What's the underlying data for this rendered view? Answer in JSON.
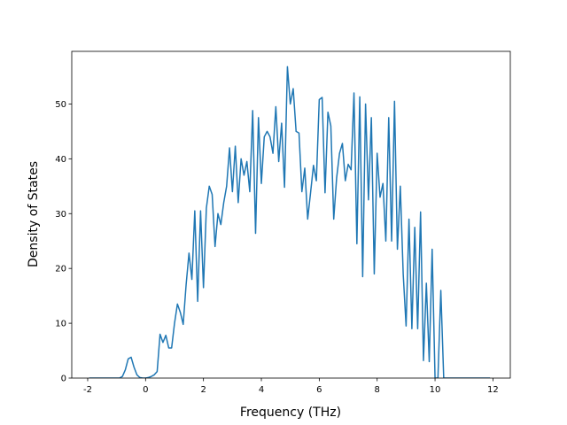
{
  "chart_data": {
    "type": "line",
    "xlabel": "Frequency (THz)",
    "ylabel": "Density of States",
    "x": [
      -1.95,
      -1.0,
      -0.9,
      -0.8,
      -0.7,
      -0.6,
      -0.5,
      -0.4,
      -0.3,
      -0.2,
      -0.1,
      0,
      0.1,
      0.2,
      0.3,
      0.4,
      0.5,
      0.6,
      0.7,
      0.8,
      0.9,
      1.0,
      1.1,
      1.2,
      1.3,
      1.4,
      1.5,
      1.6,
      1.7,
      1.8,
      1.9,
      2.0,
      2.1,
      2.2,
      2.3,
      2.4,
      2.5,
      2.6,
      2.7,
      2.8,
      2.9,
      3.0,
      3.1,
      3.2,
      3.3,
      3.4,
      3.5,
      3.6,
      3.7,
      3.8,
      3.9,
      4.0,
      4.1,
      4.2,
      4.3,
      4.4,
      4.5,
      4.6,
      4.7,
      4.8,
      4.9,
      5.0,
      5.1,
      5.2,
      5.3,
      5.4,
      5.5,
      5.6,
      5.7,
      5.8,
      5.9,
      6.0,
      6.1,
      6.2,
      6.3,
      6.4,
      6.5,
      6.6,
      6.7,
      6.8,
      6.9,
      7.0,
      7.1,
      7.2,
      7.3,
      7.4,
      7.5,
      7.6,
      7.7,
      7.8,
      7.9,
      8.0,
      8.1,
      8.2,
      8.3,
      8.4,
      8.5,
      8.6,
      8.7,
      8.8,
      8.9,
      9.0,
      9.1,
      9.2,
      9.3,
      9.4,
      9.5,
      9.6,
      9.7,
      9.8,
      9.9,
      10.0,
      10.1,
      10.2,
      10.3,
      10.4,
      11.9
    ],
    "series": [
      {
        "color": "#1f77b4",
        "values": [
          0,
          0,
          0,
          0.3,
          1.5,
          3.5,
          3.8,
          2,
          0.6,
          0.1,
          0,
          0,
          0.1,
          0.3,
          0.6,
          1.2,
          8,
          6.5,
          7.8,
          5.5,
          5.5,
          10,
          13.5,
          12,
          9.8,
          17,
          22.8,
          18,
          30.5,
          14,
          30.5,
          16.5,
          31,
          35,
          33.5,
          24,
          30,
          28,
          32,
          35,
          42,
          34,
          42.3,
          32,
          40,
          37,
          39.5,
          34,
          48.8,
          26.4,
          47.5,
          35.5,
          44,
          45,
          44,
          41,
          49.5,
          39.5,
          46.5,
          34.8,
          56.8,
          50,
          52.8,
          45,
          44.7,
          34,
          38.3,
          29,
          33.8,
          38.8,
          36,
          50.8,
          51.2,
          33.8,
          48.5,
          46,
          29,
          36.5,
          41,
          42.8,
          36,
          39,
          38,
          52,
          24.5,
          51.3,
          18.5,
          50,
          32.5,
          47.5,
          19,
          41,
          33,
          35.5,
          25,
          47.5,
          25,
          50.5,
          23.5,
          35,
          19,
          9.5,
          29,
          9,
          27.5,
          9,
          30.3,
          3.2,
          17.3,
          3,
          23.5,
          0,
          0,
          16,
          0,
          0,
          0
        ]
      }
    ],
    "xlim": [
      -2.55,
      12.6
    ],
    "ylim": [
      0,
      59.6
    ],
    "xticks": [
      -2,
      0,
      2,
      4,
      6,
      8,
      10,
      12
    ],
    "yticks": [
      0,
      10,
      20,
      30,
      40,
      50
    ]
  }
}
